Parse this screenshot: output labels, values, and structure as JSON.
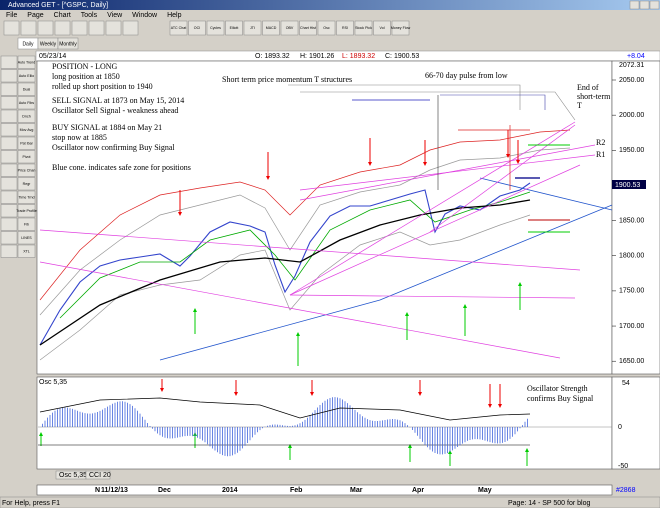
{
  "window": {
    "title": "Advanced GET - [^GSPC, Daily]"
  },
  "menu": [
    "File",
    "Page",
    "Chart",
    "Tools",
    "View",
    "Window",
    "Help"
  ],
  "toolbar": [
    "ATC Chat",
    "OCI",
    "Cycles",
    "Elliott",
    "JTI",
    "MACD",
    "OBV",
    "Chart Hist",
    "Osc",
    "RSI",
    "Stock Pick",
    "Vol",
    "Money Flow"
  ],
  "tabs": [
    "Daily",
    "Weekly",
    "Monthly"
  ],
  "info": {
    "date": "05/23/14",
    "open": "O: 1893.32",
    "high": "H: 1901.26",
    "low": "L: 1893.32",
    "close": "C: 1900.53",
    "change": "+8.04"
  },
  "left_tools": [
    "Auto Trend",
    "Auto Ellio",
    "Dual",
    "Auto Fibs",
    "Dnch",
    "Mov Avg",
    "Pat Ibar",
    "Pivot",
    "Price Chan",
    "Regr",
    "Time Trnd",
    "Trade Profile",
    "Fib",
    "LINES",
    "XTL"
  ],
  "price_axis": {
    "top": "2072.31",
    "labels": [
      "2050.00",
      "2000.00",
      "1950.00",
      "1900.00",
      "1850.00",
      "1800.00",
      "1750.00",
      "1700.00",
      "1650.00"
    ],
    "last": "1900.53"
  },
  "notes": [
    "POSITION - LONG",
    "long position at 1850",
    "rolled up short position to 1940",
    "SELL SIGNAL at 1873 on May 15, 2014",
    "Oscillator Sell Signal - weakness ahead",
    "BUY SIGNAL at 1884 on May 21",
    "stop now at 1885",
    "Oscillator now confirming Buy Signal",
    "Blue cone. indicates safe zone for positions"
  ],
  "chart_notes": {
    "t_structures": "Short term price momentum T structures",
    "pulse": "66-70 day pulse from low",
    "end_t": [
      "End of",
      "short-term",
      "T"
    ],
    "r2": "R2",
    "r1": "R1"
  },
  "oscillator": {
    "name": "Osc 5,35",
    "labels": [
      "54",
      "0",
      "-50"
    ],
    "notes": [
      "Oscillator Strength",
      "confirms Buy Signal"
    ]
  },
  "osc_tabs": [
    "Osc 5,35",
    "CCI 20"
  ],
  "date_axis": [
    "N",
    "11/12/13",
    "Dec",
    "2014",
    "Feb",
    "Mar",
    "Apr",
    "May"
  ],
  "status": {
    "help": "For Help, press F1",
    "page": "Page: 14 - SP 500 for blog",
    "id": "#2868"
  }
}
